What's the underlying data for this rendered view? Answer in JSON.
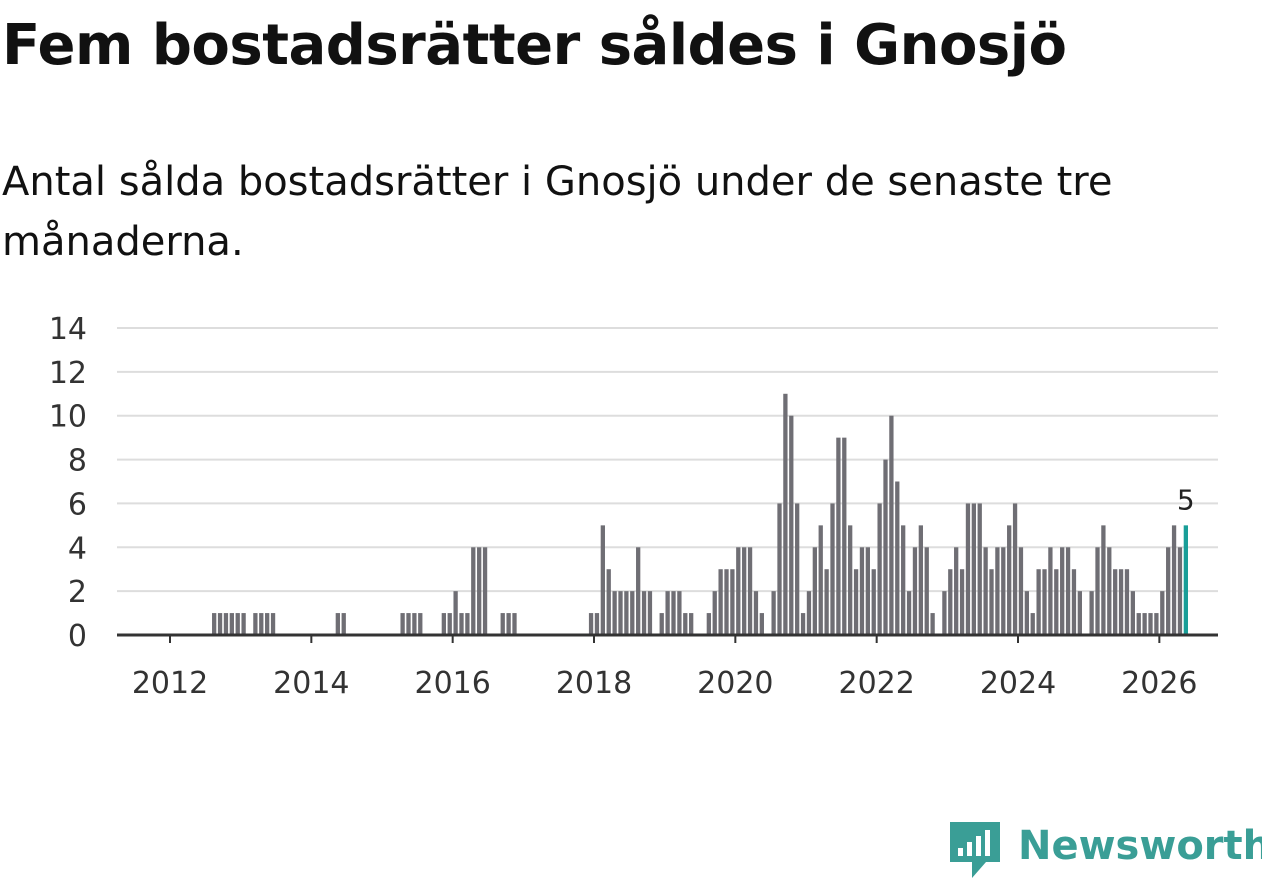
{
  "title": "Fem bostadsrätter såldes i Gnosjö",
  "subtitle": "Antal sålda bostadsrätter i Gnosjö under de senaste tre månaderna.",
  "brand": "Newsworthy",
  "colors": {
    "bar": "#6f6e74",
    "highlight": "#199e98",
    "grid": "#dddddd",
    "axis": "#333333",
    "brand": "#3a9e96"
  },
  "chart_data": {
    "type": "bar",
    "title": "Fem bostadsrätter såldes i Gnosjö",
    "xlabel": "",
    "ylabel": "",
    "ylim": [
      0,
      14
    ],
    "yticks": [
      0,
      2,
      4,
      6,
      8,
      10,
      12,
      14
    ],
    "xlim": [
      2011.25,
      2026.83
    ],
    "xticks": [
      2012,
      2014,
      2016,
      2018,
      2020,
      2022,
      2024,
      2026
    ],
    "grid": true,
    "start": {
      "year": 2011,
      "month": 4
    },
    "values": [
      0,
      0,
      0,
      0,
      0,
      0,
      0,
      0,
      0,
      0,
      0,
      0,
      0,
      0,
      0,
      0,
      1,
      1,
      1,
      1,
      1,
      1,
      0,
      1,
      1,
      1,
      1,
      0,
      0,
      0,
      0,
      0,
      0,
      0,
      0,
      0,
      0,
      1,
      1,
      0,
      0,
      0,
      0,
      0,
      0,
      0,
      0,
      0,
      1,
      1,
      1,
      1,
      0,
      0,
      0,
      1,
      1,
      2,
      1,
      1,
      4,
      4,
      4,
      0,
      0,
      1,
      1,
      1,
      0,
      0,
      0,
      0,
      0,
      0,
      0,
      0,
      0,
      0,
      0,
      0,
      1,
      1,
      5,
      3,
      2,
      2,
      2,
      2,
      4,
      2,
      2,
      0,
      1,
      2,
      2,
      2,
      1,
      1,
      0,
      0,
      1,
      2,
      3,
      3,
      3,
      4,
      4,
      4,
      2,
      1,
      0,
      2,
      6,
      11,
      10,
      6,
      1,
      2,
      4,
      5,
      3,
      6,
      9,
      9,
      5,
      3,
      4,
      4,
      3,
      6,
      8,
      10,
      7,
      5,
      2,
      4,
      5,
      4,
      1,
      0,
      2,
      3,
      4,
      3,
      6,
      6,
      6,
      4,
      3,
      4,
      4,
      5,
      6,
      4,
      2,
      1,
      3,
      3,
      4,
      3,
      4,
      4,
      3,
      2,
      0,
      2,
      4,
      5,
      4,
      3,
      3,
      3,
      2,
      1,
      1,
      1,
      1,
      2,
      4,
      5,
      4,
      5
    ],
    "last_value_label": "5",
    "highlight": "last"
  }
}
